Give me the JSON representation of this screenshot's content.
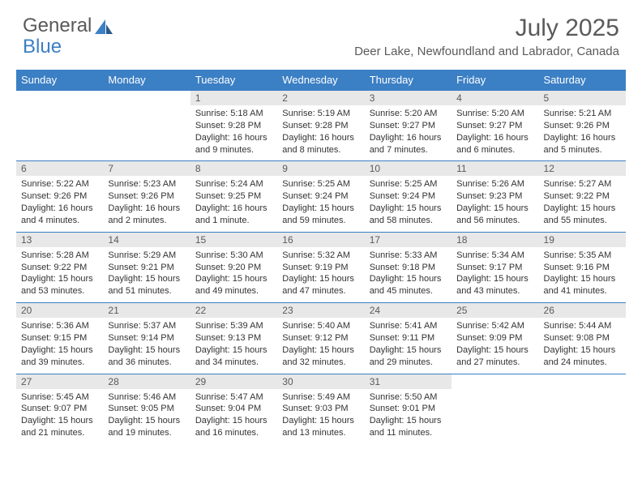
{
  "logo": {
    "text1": "General",
    "text2": "Blue"
  },
  "title": "July 2025",
  "location": "Deer Lake, Newfoundland and Labrador, Canada",
  "colors": {
    "header_bg": "#3b7fc4",
    "header_text": "#ffffff",
    "daynum_bg": "#e8e8e8",
    "text": "#333333",
    "muted": "#5a5a5a"
  },
  "dayHeaders": [
    "Sunday",
    "Monday",
    "Tuesday",
    "Wednesday",
    "Thursday",
    "Friday",
    "Saturday"
  ],
  "weeks": [
    [
      null,
      null,
      {
        "n": "1",
        "sunrise": "5:18 AM",
        "sunset": "9:28 PM",
        "daylight": "16 hours and 9 minutes."
      },
      {
        "n": "2",
        "sunrise": "5:19 AM",
        "sunset": "9:28 PM",
        "daylight": "16 hours and 8 minutes."
      },
      {
        "n": "3",
        "sunrise": "5:20 AM",
        "sunset": "9:27 PM",
        "daylight": "16 hours and 7 minutes."
      },
      {
        "n": "4",
        "sunrise": "5:20 AM",
        "sunset": "9:27 PM",
        "daylight": "16 hours and 6 minutes."
      },
      {
        "n": "5",
        "sunrise": "5:21 AM",
        "sunset": "9:26 PM",
        "daylight": "16 hours and 5 minutes."
      }
    ],
    [
      {
        "n": "6",
        "sunrise": "5:22 AM",
        "sunset": "9:26 PM",
        "daylight": "16 hours and 4 minutes."
      },
      {
        "n": "7",
        "sunrise": "5:23 AM",
        "sunset": "9:26 PM",
        "daylight": "16 hours and 2 minutes."
      },
      {
        "n": "8",
        "sunrise": "5:24 AM",
        "sunset": "9:25 PM",
        "daylight": "16 hours and 1 minute."
      },
      {
        "n": "9",
        "sunrise": "5:25 AM",
        "sunset": "9:24 PM",
        "daylight": "15 hours and 59 minutes."
      },
      {
        "n": "10",
        "sunrise": "5:25 AM",
        "sunset": "9:24 PM",
        "daylight": "15 hours and 58 minutes."
      },
      {
        "n": "11",
        "sunrise": "5:26 AM",
        "sunset": "9:23 PM",
        "daylight": "15 hours and 56 minutes."
      },
      {
        "n": "12",
        "sunrise": "5:27 AM",
        "sunset": "9:22 PM",
        "daylight": "15 hours and 55 minutes."
      }
    ],
    [
      {
        "n": "13",
        "sunrise": "5:28 AM",
        "sunset": "9:22 PM",
        "daylight": "15 hours and 53 minutes."
      },
      {
        "n": "14",
        "sunrise": "5:29 AM",
        "sunset": "9:21 PM",
        "daylight": "15 hours and 51 minutes."
      },
      {
        "n": "15",
        "sunrise": "5:30 AM",
        "sunset": "9:20 PM",
        "daylight": "15 hours and 49 minutes."
      },
      {
        "n": "16",
        "sunrise": "5:32 AM",
        "sunset": "9:19 PM",
        "daylight": "15 hours and 47 minutes."
      },
      {
        "n": "17",
        "sunrise": "5:33 AM",
        "sunset": "9:18 PM",
        "daylight": "15 hours and 45 minutes."
      },
      {
        "n": "18",
        "sunrise": "5:34 AM",
        "sunset": "9:17 PM",
        "daylight": "15 hours and 43 minutes."
      },
      {
        "n": "19",
        "sunrise": "5:35 AM",
        "sunset": "9:16 PM",
        "daylight": "15 hours and 41 minutes."
      }
    ],
    [
      {
        "n": "20",
        "sunrise": "5:36 AM",
        "sunset": "9:15 PM",
        "daylight": "15 hours and 39 minutes."
      },
      {
        "n": "21",
        "sunrise": "5:37 AM",
        "sunset": "9:14 PM",
        "daylight": "15 hours and 36 minutes."
      },
      {
        "n": "22",
        "sunrise": "5:39 AM",
        "sunset": "9:13 PM",
        "daylight": "15 hours and 34 minutes."
      },
      {
        "n": "23",
        "sunrise": "5:40 AM",
        "sunset": "9:12 PM",
        "daylight": "15 hours and 32 minutes."
      },
      {
        "n": "24",
        "sunrise": "5:41 AM",
        "sunset": "9:11 PM",
        "daylight": "15 hours and 29 minutes."
      },
      {
        "n": "25",
        "sunrise": "5:42 AM",
        "sunset": "9:09 PM",
        "daylight": "15 hours and 27 minutes."
      },
      {
        "n": "26",
        "sunrise": "5:44 AM",
        "sunset": "9:08 PM",
        "daylight": "15 hours and 24 minutes."
      }
    ],
    [
      {
        "n": "27",
        "sunrise": "5:45 AM",
        "sunset": "9:07 PM",
        "daylight": "15 hours and 21 minutes."
      },
      {
        "n": "28",
        "sunrise": "5:46 AM",
        "sunset": "9:05 PM",
        "daylight": "15 hours and 19 minutes."
      },
      {
        "n": "29",
        "sunrise": "5:47 AM",
        "sunset": "9:04 PM",
        "daylight": "15 hours and 16 minutes."
      },
      {
        "n": "30",
        "sunrise": "5:49 AM",
        "sunset": "9:03 PM",
        "daylight": "15 hours and 13 minutes."
      },
      {
        "n": "31",
        "sunrise": "5:50 AM",
        "sunset": "9:01 PM",
        "daylight": "15 hours and 11 minutes."
      },
      null,
      null
    ]
  ],
  "labels": {
    "sunrise": "Sunrise: ",
    "sunset": "Sunset: ",
    "daylight": "Daylight: "
  }
}
